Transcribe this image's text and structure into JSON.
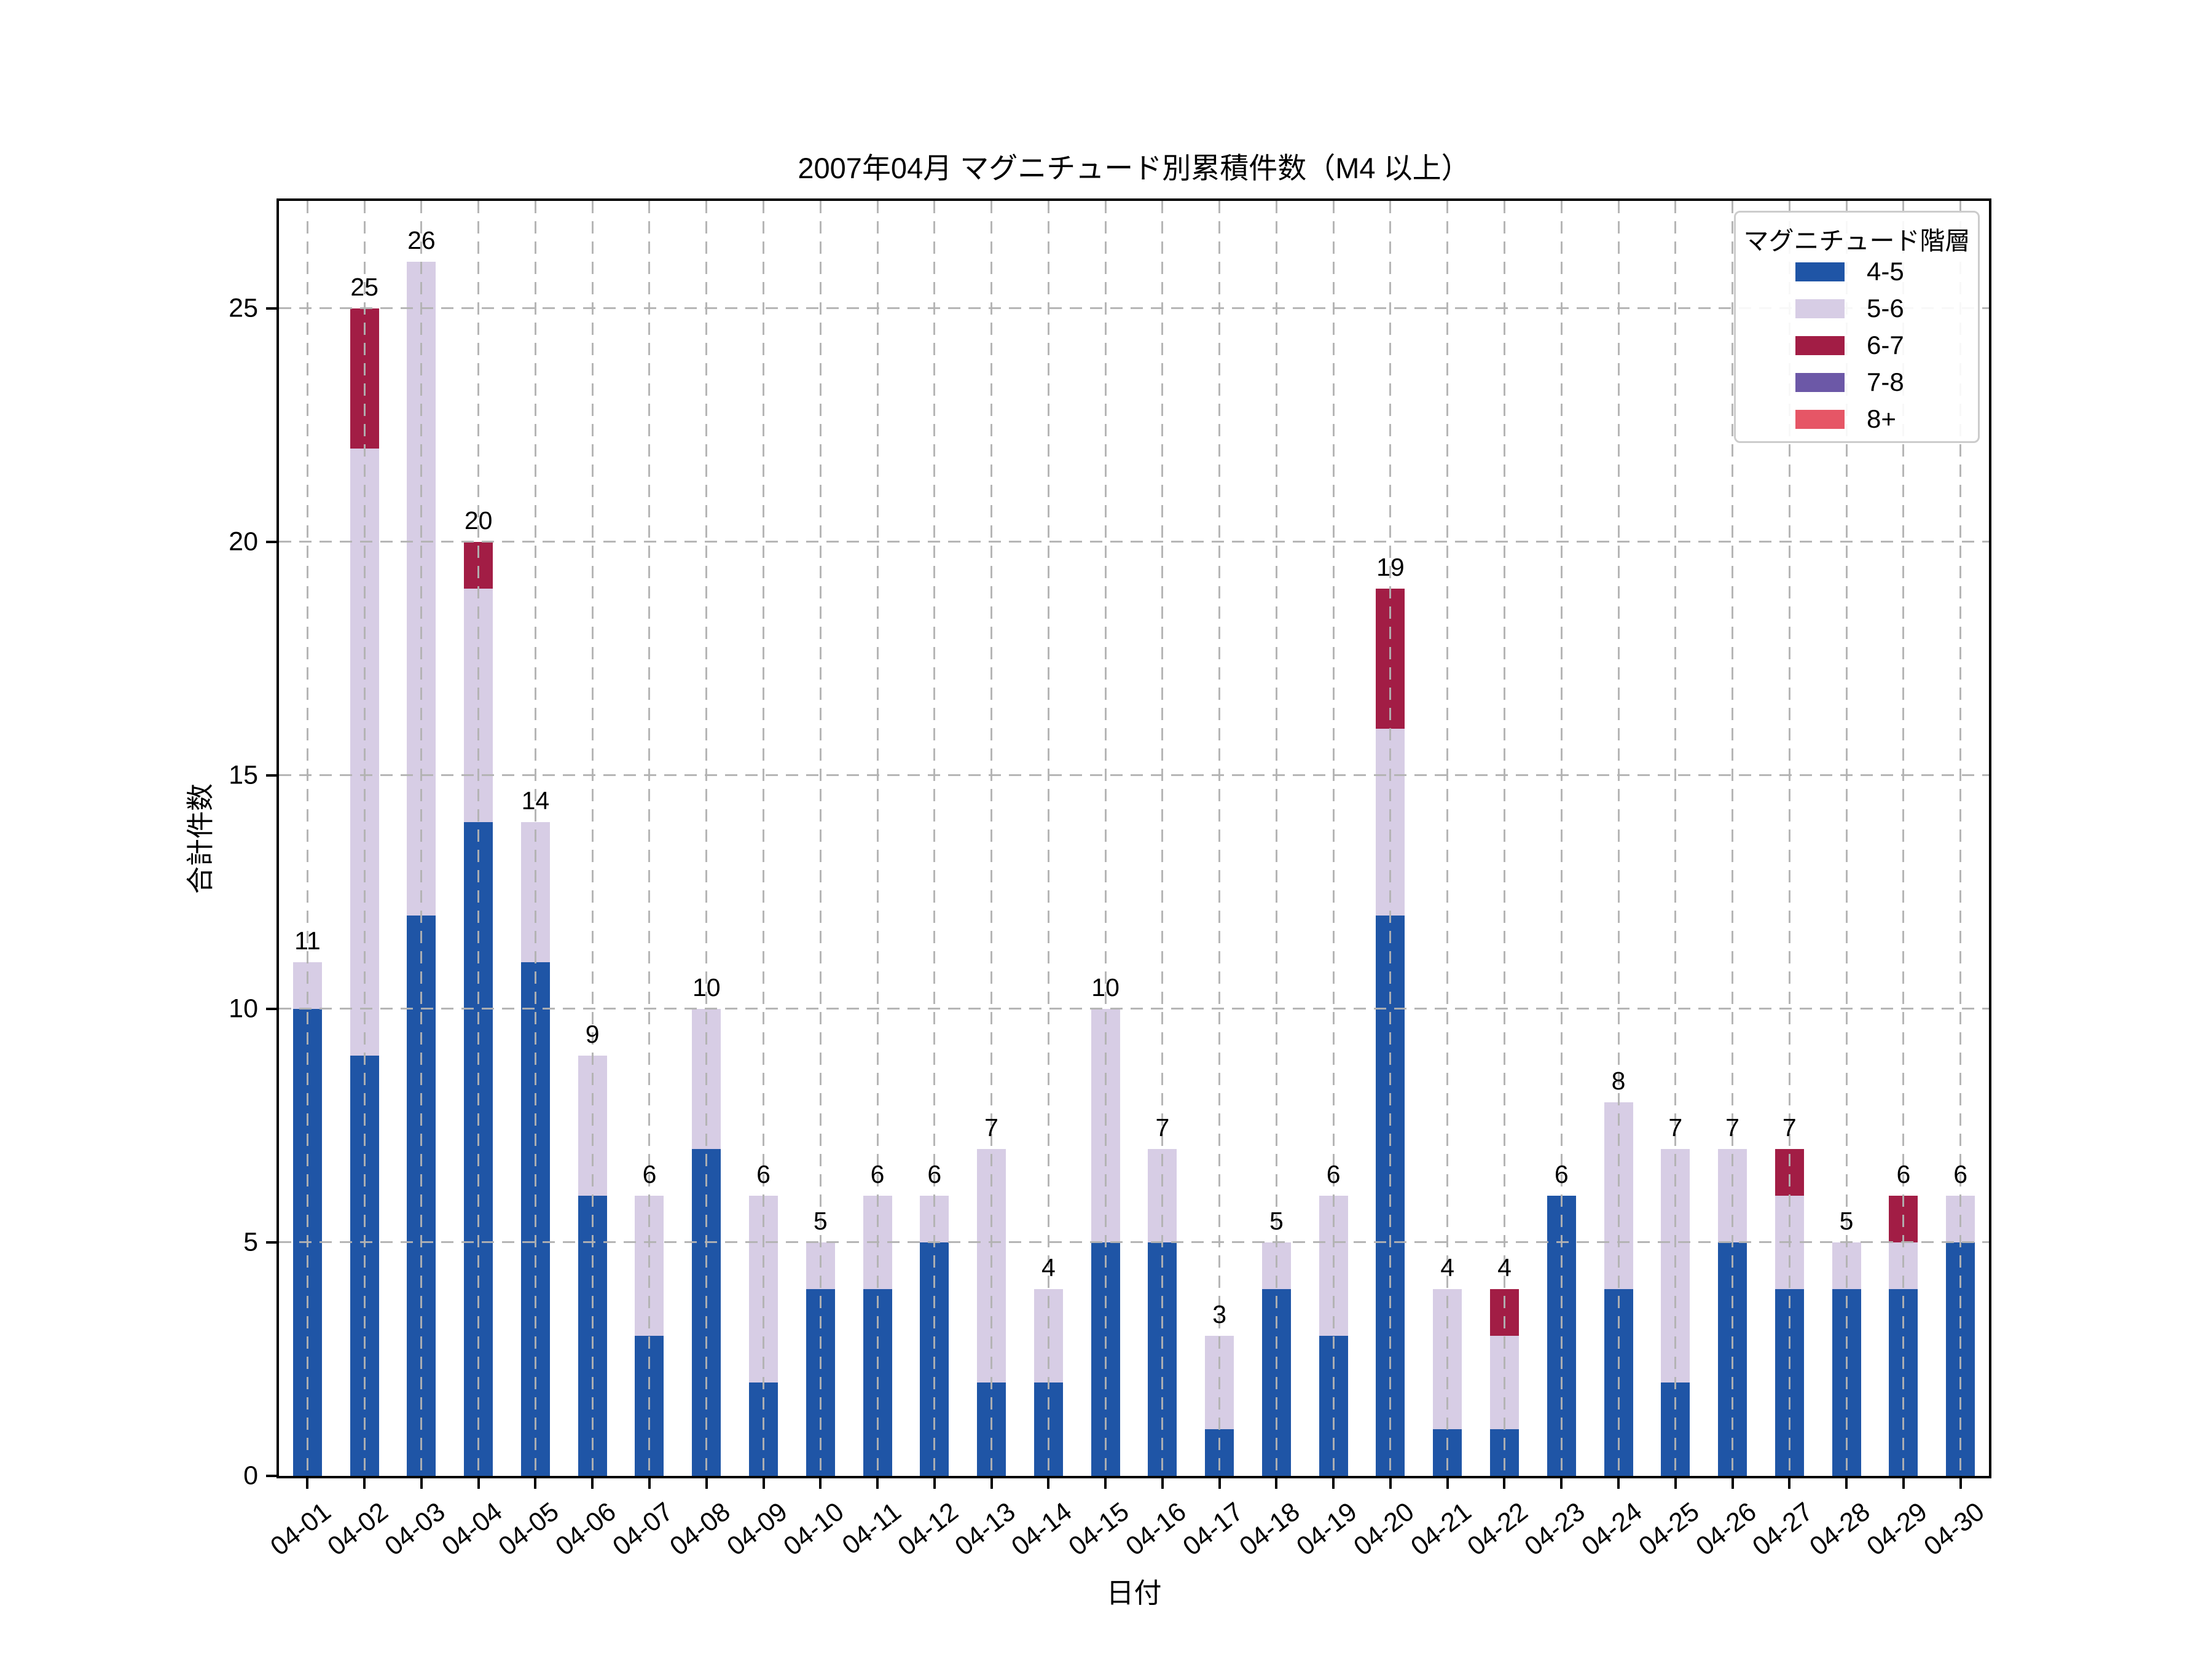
{
  "chart_data": {
    "type": "bar",
    "stacked": true,
    "title": "2007年04月 マグニチュード別累積件数（M4 以上）",
    "xlabel": "日付",
    "ylabel": "合計件数",
    "legend_title": "マグニチュード階層",
    "legend_position": "upper right",
    "grid": "dashed",
    "ylim": [
      0,
      27.3
    ],
    "yticks": [
      0,
      5,
      10,
      15,
      20,
      25
    ],
    "categories": [
      "04-01",
      "04-02",
      "04-03",
      "04-04",
      "04-05",
      "04-06",
      "04-07",
      "04-08",
      "04-09",
      "04-10",
      "04-11",
      "04-12",
      "04-13",
      "04-14",
      "04-15",
      "04-16",
      "04-17",
      "04-18",
      "04-19",
      "04-20",
      "04-21",
      "04-22",
      "04-23",
      "04-24",
      "04-25",
      "04-26",
      "04-27",
      "04-28",
      "04-29",
      "04-30"
    ],
    "series": [
      {
        "name": "4-5",
        "color": "#1f55a6",
        "values": [
          10,
          9,
          12,
          14,
          11,
          6,
          3,
          7,
          2,
          4,
          4,
          5,
          2,
          2,
          5,
          5,
          1,
          4,
          3,
          12,
          1,
          1,
          6,
          4,
          2,
          5,
          4,
          4,
          4,
          5
        ]
      },
      {
        "name": "5-6",
        "color": "#d7cde5",
        "values": [
          1,
          13,
          14,
          5,
          3,
          3,
          3,
          3,
          4,
          1,
          2,
          1,
          5,
          2,
          5,
          2,
          2,
          1,
          3,
          4,
          3,
          2,
          0,
          4,
          5,
          2,
          2,
          1,
          1,
          1
        ]
      },
      {
        "name": "6-7",
        "color": "#a21d45",
        "values": [
          0,
          3,
          0,
          1,
          0,
          0,
          0,
          0,
          0,
          0,
          0,
          0,
          0,
          0,
          0,
          0,
          0,
          0,
          0,
          3,
          0,
          1,
          0,
          0,
          0,
          0,
          1,
          0,
          1,
          0
        ]
      },
      {
        "name": "7-8",
        "color": "#6c58a7",
        "values": [
          0,
          0,
          0,
          0,
          0,
          0,
          0,
          0,
          0,
          0,
          0,
          0,
          0,
          0,
          0,
          0,
          0,
          0,
          0,
          0,
          0,
          0,
          0,
          0,
          0,
          0,
          0,
          0,
          0,
          0
        ]
      },
      {
        "name": "8+",
        "color": "#e65666",
        "values": [
          0,
          0,
          0,
          0,
          0,
          0,
          0,
          0,
          0,
          0,
          0,
          0,
          0,
          0,
          0,
          0,
          0,
          0,
          0,
          0,
          0,
          0,
          0,
          0,
          0,
          0,
          0,
          0,
          0,
          0
        ]
      }
    ],
    "bar_total_labels": [
      11,
      25,
      26,
      20,
      14,
      9,
      6,
      10,
      6,
      5,
      6,
      6,
      7,
      4,
      10,
      7,
      3,
      5,
      6,
      19,
      4,
      4,
      6,
      8,
      7,
      7,
      7,
      5,
      6,
      6
    ],
    "colors": {
      "grid": "#b2b2b2",
      "axis": "#000000",
      "legend_border": "#cccccc",
      "background": "#ffffff"
    }
  }
}
